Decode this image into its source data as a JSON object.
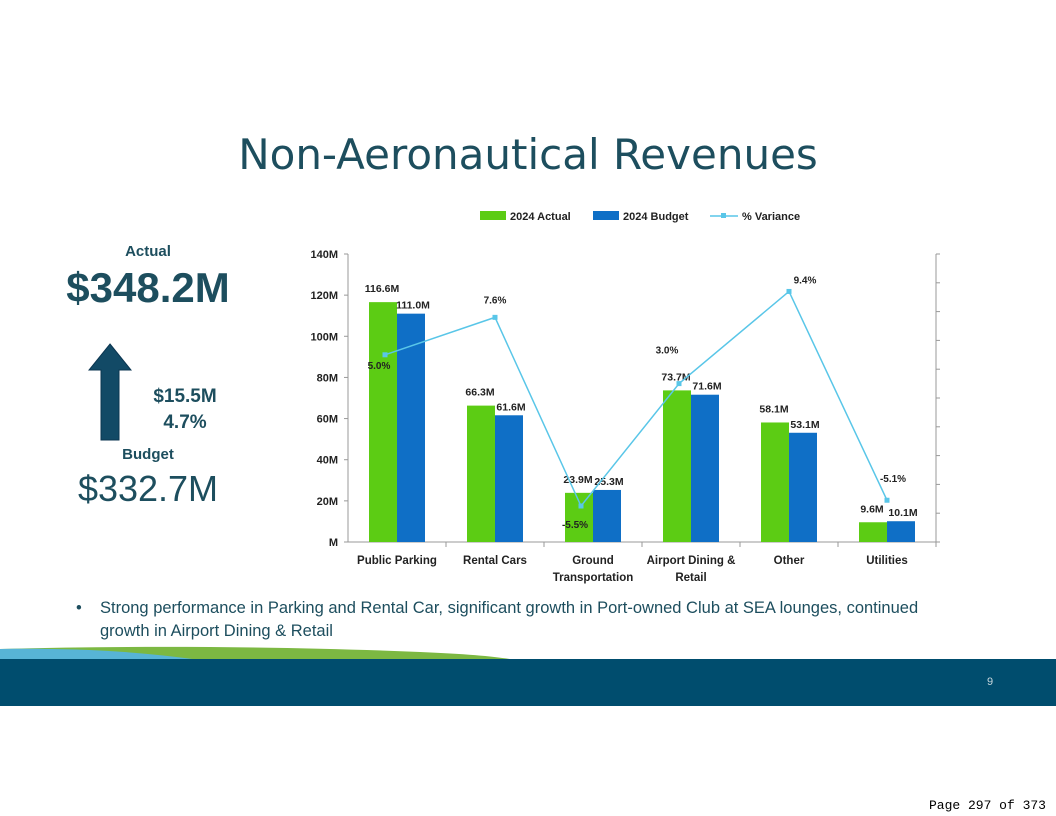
{
  "title": "Non-Aeronautical Revenues",
  "kpi": {
    "actual_label": "Actual",
    "actual_value": "$348.2M",
    "variance_amount": "$15.5M",
    "variance_pct": "4.7%",
    "budget_label": "Budget",
    "budget_value": "$332.7M"
  },
  "bullet": "Strong performance in Parking and Rental Car, significant growth in Port-owned Club at SEA lounges, continued growth in Airport Dining & Retail",
  "slide_number": "9",
  "footer": "Page 297 of 373",
  "colors": {
    "actual": "#5ccc14",
    "budget": "#0f6fc6",
    "variance": "#59c6e8",
    "title": "#1d4e5e",
    "band": "#004d6e"
  },
  "chart_data": {
    "type": "bar",
    "categories": [
      "Public Parking",
      "Rental Cars",
      "Ground Transportation",
      "Airport Dining & Retail",
      "Other",
      "Utilities"
    ],
    "category_lines": [
      [
        "Public Parking"
      ],
      [
        "Rental Cars"
      ],
      [
        "Ground",
        "Transportation"
      ],
      [
        "Airport Dining &",
        "Retail"
      ],
      [
        "Other"
      ],
      [
        "Utilities"
      ]
    ],
    "series": [
      {
        "name": "2024 Actual",
        "values": [
          116.6,
          66.3,
          23.9,
          73.7,
          58.1,
          9.6
        ],
        "labels": [
          "116.6M",
          "66.3M",
          "23.9M",
          "73.7M",
          "58.1M",
          "9.6M"
        ]
      },
      {
        "name": "2024 Budget",
        "values": [
          111.0,
          61.6,
          25.3,
          71.6,
          53.1,
          10.1
        ],
        "labels": [
          "111.0M",
          "61.6M",
          "25.3M",
          "71.6M",
          "53.1M",
          "10.1M"
        ]
      }
    ],
    "line_series": {
      "name": "% Variance",
      "type": "line",
      "axis": "secondary",
      "values": [
        5.0,
        7.6,
        -5.5,
        3.0,
        9.4,
        -5.1
      ],
      "labels": [
        "5.0%",
        "7.6%",
        "-5.5%",
        "3.0%",
        "9.4%",
        "-5.1%"
      ]
    },
    "y_ticks": [
      "M",
      "20M",
      "40M",
      "60M",
      "80M",
      "100M",
      "120M",
      "140M"
    ],
    "ylim": [
      0,
      140
    ],
    "y2lim": [
      -8,
      12
    ],
    "legend_position": "top"
  }
}
